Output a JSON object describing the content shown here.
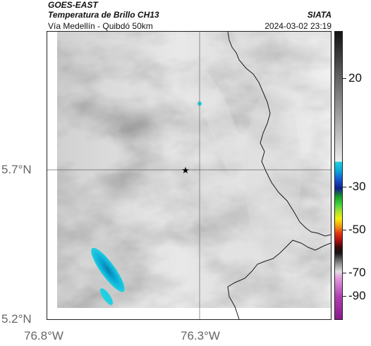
{
  "header": {
    "satellite": "GOES-EAST",
    "product": "Temperatura de Brillo CH13",
    "region": "Vía Medellín - Quibdó 50km",
    "agency": "SIATA",
    "timestamp": "2024-03-02 23:19"
  },
  "axes": {
    "lat_ticks": [
      "5.7°N",
      "5.2°N"
    ],
    "lon_ticks": [
      "76.8°W",
      "76.3°W"
    ]
  },
  "colorbar": {
    "ticks": [
      "20",
      "-30",
      "-50",
      "-70",
      "-90"
    ],
    "colors": {
      "dark": "#141414",
      "light_gray": "#ececec",
      "cyan": "#20d0e0",
      "blue": "#101d8c",
      "green": "#3fd23f",
      "yellow": "#f2f20c",
      "red": "#e43a10",
      "magenta": "#b040b0"
    }
  },
  "map": {
    "marker": "star-icon",
    "features": [
      "coastline",
      "gridlines",
      "cold-cloud-tops"
    ]
  }
}
